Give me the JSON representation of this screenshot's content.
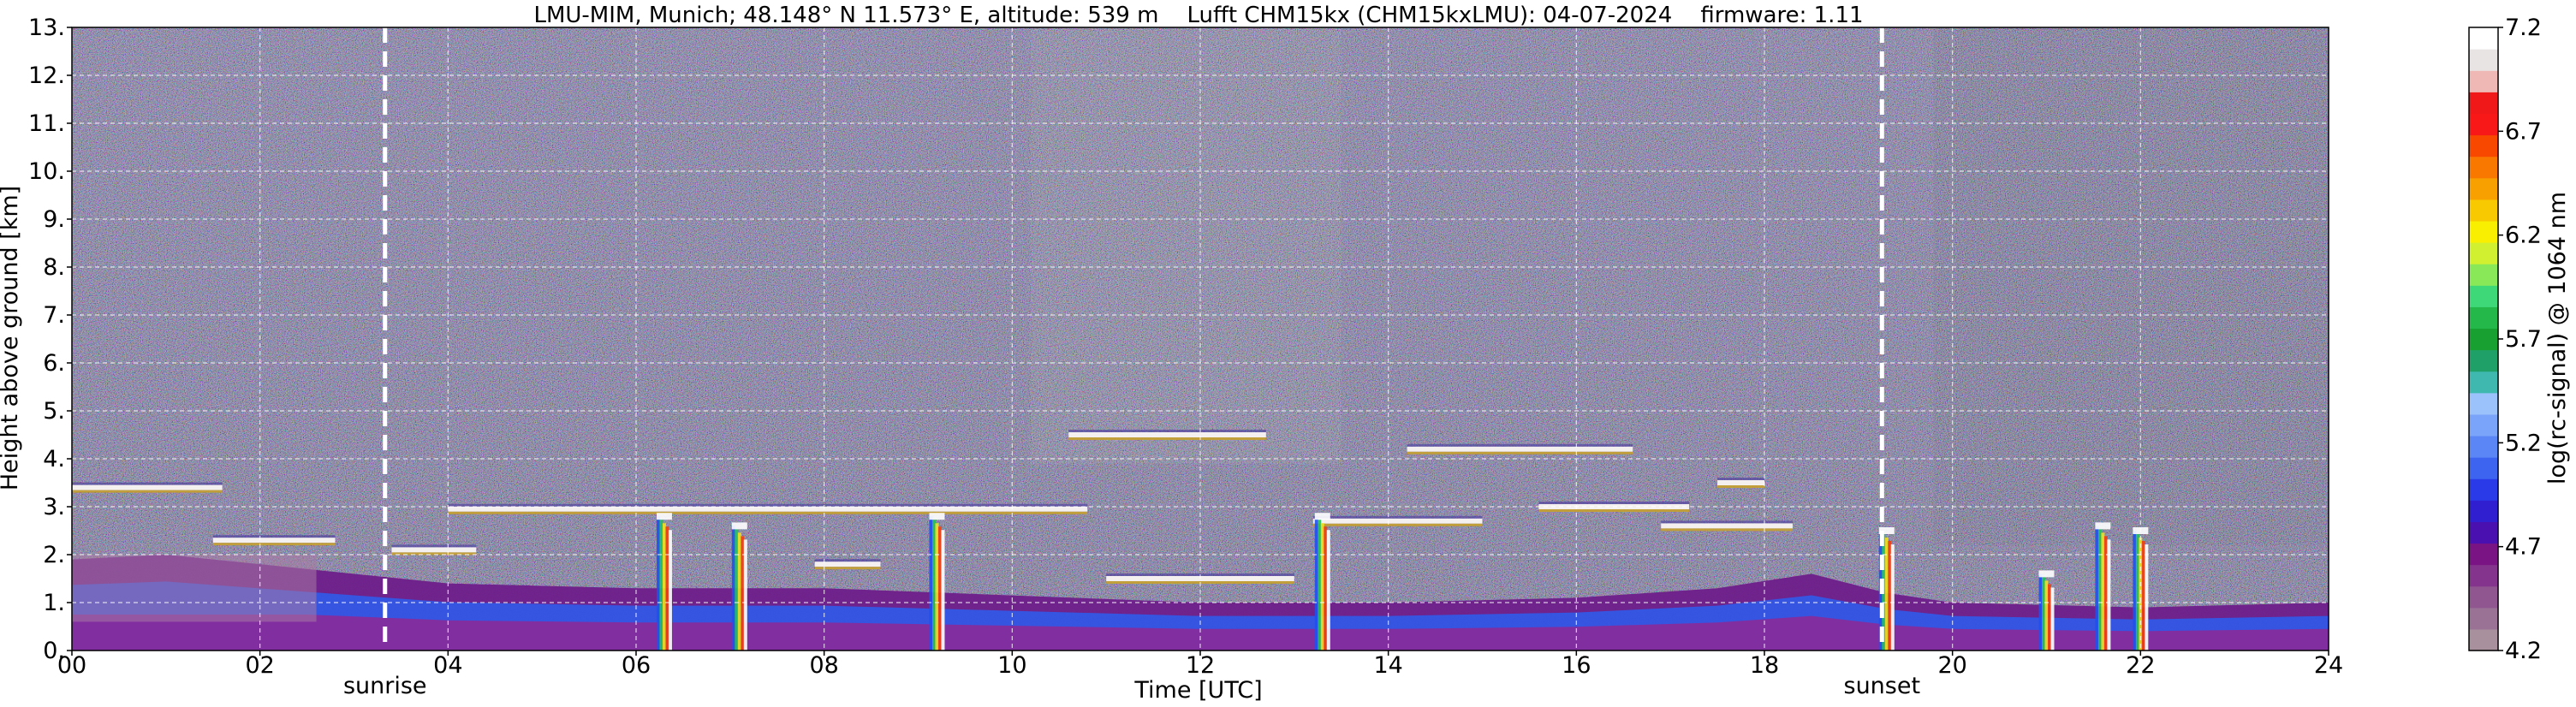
{
  "chart_data": {
    "type": "heatmap",
    "title": "LMU-MIM, Munich; 48.148° N 11.573° E, altitude: 539 m    Lufft CHM15kx (CHM15kxLMU): 04-07-2024    firmware: 1.11",
    "xlabel": "Time [UTC]",
    "ylabel": "Height above ground [km]",
    "xlim": [
      0,
      24
    ],
    "ylim": [
      0,
      13
    ],
    "xticks": [
      0,
      2,
      4,
      6,
      8,
      10,
      12,
      14,
      16,
      18,
      20,
      22,
      24
    ],
    "xtick_labels": [
      "00",
      "02",
      "04",
      "06",
      "08",
      "10",
      "12",
      "14",
      "16",
      "18",
      "20",
      "22",
      "24"
    ],
    "yticks": [
      0,
      1,
      2,
      3,
      4,
      5,
      6,
      7,
      8,
      9,
      10,
      11,
      12,
      13
    ],
    "ytick_labels": [
      "0.",
      "1.",
      "2.",
      "3.",
      "4.",
      "5.",
      "6.",
      "7.",
      "8.",
      "9.",
      "10.",
      "11.",
      "12.",
      "13."
    ],
    "grid": true,
    "markers": [
      {
        "label": "sunrise",
        "x": 3.33
      },
      {
        "label": "sunset",
        "x": 19.25
      }
    ],
    "colorbar": {
      "label": "log(rc-signal) @ 1064 nm",
      "min": 4.2,
      "max": 7.2,
      "tick_values": [
        4.2,
        4.7,
        5.2,
        5.7,
        6.2,
        6.7,
        7.2
      ],
      "tick_labels": [
        "4.2",
        "4.7",
        "5.2",
        "5.7",
        "6.2",
        "6.7",
        "7.2"
      ],
      "colors": [
        "#a8909c",
        "#9a7296",
        "#8f5690",
        "#84348c",
        "#7a1484",
        "#4a10b0",
        "#2f1fd0",
        "#2a3ae8",
        "#3c64f0",
        "#5a86f6",
        "#7aa4fa",
        "#9cc2fc",
        "#3fb8b0",
        "#1fa068",
        "#18a030",
        "#24b84a",
        "#3ed878",
        "#88e858",
        "#d0f030",
        "#f8f000",
        "#f8c800",
        "#f8a000",
        "#f87800",
        "#f84800",
        "#f81818",
        "#f01818",
        "#f0b8b4",
        "#e8e4e4",
        "#ffffff"
      ]
    },
    "features": {
      "boundary_layer_top_km": [
        {
          "x": 0.0,
          "y": 1.9
        },
        {
          "x": 1.0,
          "y": 2.0
        },
        {
          "x": 2.5,
          "y": 1.7
        },
        {
          "x": 4.0,
          "y": 1.4
        },
        {
          "x": 6.0,
          "y": 1.3
        },
        {
          "x": 8.0,
          "y": 1.3
        },
        {
          "x": 10.0,
          "y": 1.15
        },
        {
          "x": 12.0,
          "y": 1.0
        },
        {
          "x": 14.0,
          "y": 1.0
        },
        {
          "x": 16.0,
          "y": 1.1
        },
        {
          "x": 17.5,
          "y": 1.3
        },
        {
          "x": 18.5,
          "y": 1.6
        },
        {
          "x": 19.3,
          "y": 1.2
        },
        {
          "x": 20.0,
          "y": 1.0
        },
        {
          "x": 22.0,
          "y": 0.9
        },
        {
          "x": 24.0,
          "y": 1.0
        }
      ],
      "cloud_layers_km": [
        {
          "x_start": 0.0,
          "x_end": 1.6,
          "y": 3.4
        },
        {
          "x_start": 1.5,
          "x_end": 2.8,
          "y": 2.3
        },
        {
          "x_start": 3.4,
          "x_end": 4.3,
          "y": 2.1
        },
        {
          "x_start": 4.0,
          "x_end": 10.8,
          "y": 2.95
        },
        {
          "x_start": 7.9,
          "x_end": 8.6,
          "y": 1.8
        },
        {
          "x_start": 10.6,
          "x_end": 12.7,
          "y": 4.5
        },
        {
          "x_start": 11.0,
          "x_end": 13.0,
          "y": 1.5
        },
        {
          "x_start": 13.2,
          "x_end": 15.0,
          "y": 2.7
        },
        {
          "x_start": 14.2,
          "x_end": 16.6,
          "y": 4.2
        },
        {
          "x_start": 15.6,
          "x_end": 17.2,
          "y": 3.0
        },
        {
          "x_start": 17.5,
          "x_end": 18.0,
          "y": 3.5
        },
        {
          "x_start": 16.9,
          "x_end": 18.3,
          "y": 2.6
        }
      ],
      "precipitation_shafts": [
        {
          "x": 6.3,
          "top_km": 2.8
        },
        {
          "x": 7.1,
          "top_km": 2.6
        },
        {
          "x": 9.2,
          "top_km": 2.8
        },
        {
          "x": 13.3,
          "top_km": 2.8
        },
        {
          "x": 19.3,
          "top_km": 2.5
        },
        {
          "x": 21.0,
          "top_km": 1.6
        },
        {
          "x": 21.6,
          "top_km": 2.6
        },
        {
          "x": 22.0,
          "top_km": 2.5
        }
      ]
    }
  }
}
